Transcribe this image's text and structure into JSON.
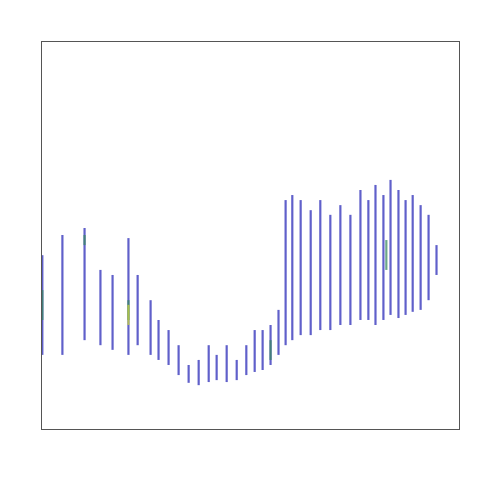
{
  "chart_data": {
    "type": "density",
    "tick_labels": false,
    "xlim": [
      0,
      100
    ],
    "ylim": [
      0,
      100
    ],
    "levels": [
      1,
      2,
      3
    ],
    "level_colors": [
      "#2b2bb8",
      "#3a8a60",
      "#c8d43a"
    ],
    "cells": [
      [
        0.2,
        44.8,
        19.1,
        1
      ],
      [
        0.2,
        35.8,
        28.1,
        2
      ],
      [
        5.0,
        50.0,
        19.1,
        1
      ],
      [
        10.3,
        51.8,
        22.9,
        1
      ],
      [
        10.3,
        50.0,
        47.4,
        2
      ],
      [
        14.1,
        41.0,
        21.6,
        1
      ],
      [
        17.0,
        39.7,
        20.4,
        1
      ],
      [
        20.8,
        49.2,
        19.1,
        1
      ],
      [
        20.8,
        33.2,
        28.1,
        2
      ],
      [
        20.8,
        32.0,
        26.8,
        3
      ],
      [
        23.0,
        39.7,
        21.6,
        1
      ],
      [
        26.1,
        33.2,
        19.1,
        1
      ],
      [
        28.0,
        28.1,
        17.8,
        1
      ],
      [
        30.4,
        25.5,
        16.5,
        1
      ],
      [
        32.8,
        21.6,
        13.9,
        1
      ],
      [
        35.2,
        16.5,
        11.9,
        1
      ],
      [
        37.6,
        17.8,
        11.3,
        1
      ],
      [
        40.0,
        21.6,
        12.1,
        1
      ],
      [
        41.9,
        19.1,
        12.6,
        1
      ],
      [
        44.3,
        21.6,
        12.1,
        1
      ],
      [
        46.7,
        17.8,
        12.6,
        1
      ],
      [
        49.0,
        21.6,
        13.9,
        1
      ],
      [
        51.0,
        25.5,
        14.7,
        1
      ],
      [
        52.9,
        25.5,
        15.2,
        1
      ],
      [
        54.8,
        26.8,
        16.5,
        1
      ],
      [
        54.8,
        22.9,
        17.8,
        2
      ],
      [
        56.7,
        30.7,
        19.1,
        1
      ],
      [
        58.4,
        59.0,
        21.6,
        1
      ],
      [
        60.0,
        60.3,
        22.9,
        1
      ],
      [
        62.0,
        59.0,
        24.2,
        1
      ],
      [
        64.4,
        56.4,
        24.2,
        1
      ],
      [
        66.7,
        59.0,
        25.5,
        1
      ],
      [
        69.1,
        55.2,
        25.5,
        1
      ],
      [
        71.5,
        57.7,
        26.8,
        1
      ],
      [
        73.9,
        55.2,
        26.8,
        1
      ],
      [
        76.3,
        61.6,
        28.1,
        1
      ],
      [
        78.2,
        59.0,
        28.1,
        1
      ],
      [
        79.9,
        62.9,
        26.8,
        1
      ],
      [
        81.8,
        60.3,
        28.1,
        1
      ],
      [
        82.5,
        48.7,
        41.0,
        2
      ],
      [
        83.5,
        64.2,
        29.4,
        1
      ],
      [
        85.4,
        61.6,
        28.6,
        1
      ],
      [
        87.1,
        59.0,
        29.4,
        1
      ],
      [
        88.8,
        60.3,
        30.2,
        1
      ],
      [
        90.7,
        57.7,
        30.7,
        1
      ],
      [
        92.6,
        55.2,
        33.2,
        1
      ],
      [
        94.5,
        47.4,
        39.7,
        1
      ]
    ]
  }
}
